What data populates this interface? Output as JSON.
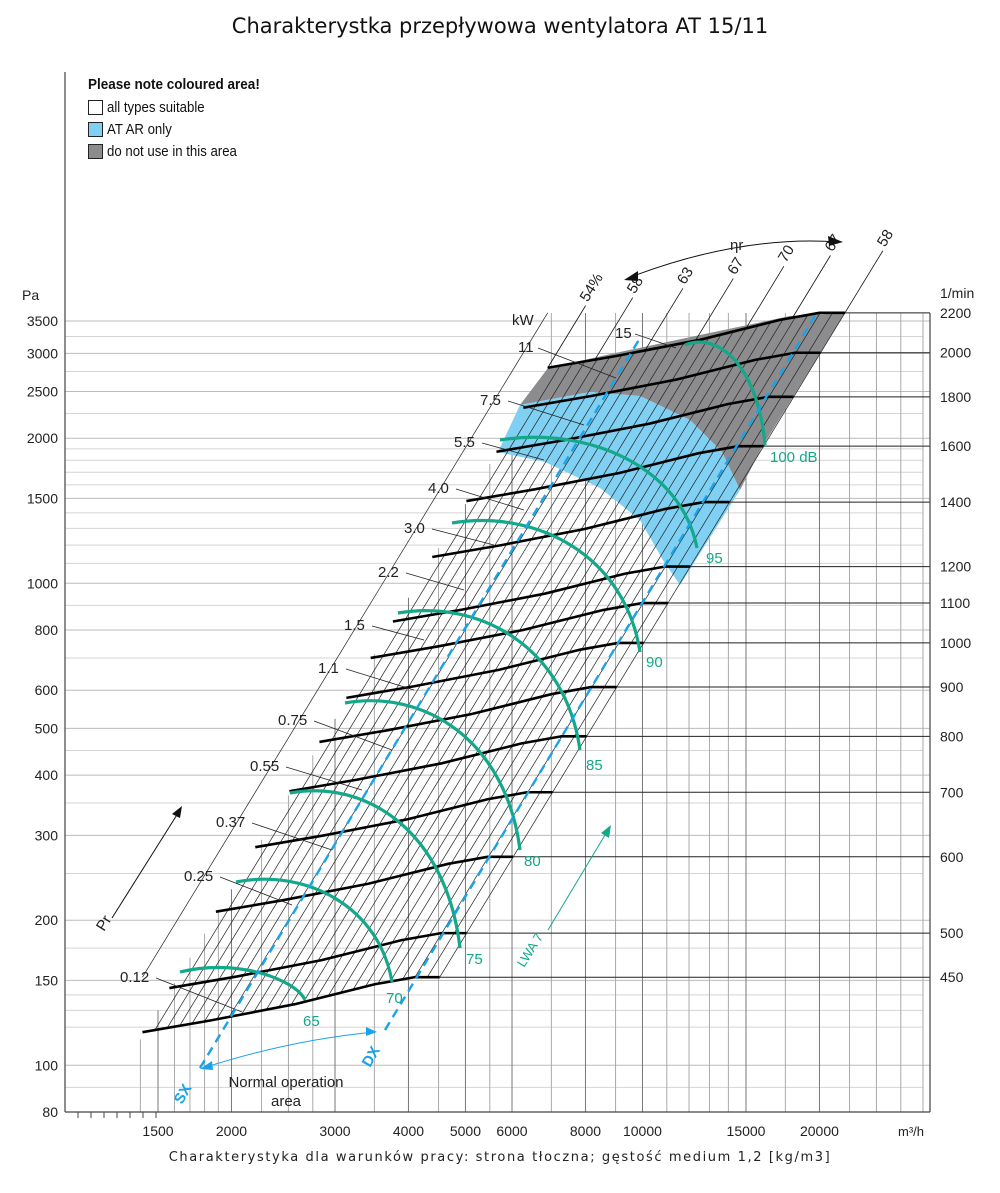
{
  "title": "Charakterystka przepływowa wentylatora AT 15/11",
  "footer": "Charakterystyka dla warunków pracy: strona tłoczna; gęstość medium 1,2 [kg/m3]",
  "legend": {
    "heading": "Please note coloured area!",
    "items": [
      {
        "label": "all types suitable",
        "color": "#ffffff"
      },
      {
        "label": "AT AR only",
        "color": "#7fd0f2"
      },
      {
        "label": "do not use in this area",
        "color": "#8c8c8f"
      }
    ]
  },
  "chart_data": {
    "type": "line",
    "title": "Charakterystka przepływowa wentylatora AT 15/11",
    "xlabel": "m³/h",
    "ylabel": "Pa",
    "y2label": "1/min",
    "xscale": "log",
    "yscale": "log",
    "xlim": [
      1100,
      40000
    ],
    "ylim": [
      80,
      3500
    ],
    "x_ticks": [
      1500,
      2000,
      3000,
      4000,
      5000,
      6000,
      8000,
      10000,
      15000,
      20000
    ],
    "y_ticks": [
      3500,
      3000,
      2500,
      2000,
      1500,
      1000,
      800,
      600,
      500,
      400,
      300,
      200,
      150,
      100,
      80
    ],
    "rpm_curves": {
      "label": "1/min",
      "values": [
        2200,
        2000,
        1800,
        1600,
        1400,
        1200,
        1100,
        1000,
        900,
        800,
        700,
        600,
        500,
        450
      ],
      "base_rpm": 2200,
      "base_curve": [
        [
          6900,
          2800
        ],
        [
          9000,
          2960
        ],
        [
          12530,
          3200
        ],
        [
          17140,
          3520
        ],
        [
          20000,
          3640
        ],
        [
          22100,
          3640
        ]
      ]
    },
    "power_kW": {
      "label": "kW",
      "values": [
        "15",
        "11",
        "7.5",
        "5.5",
        "4.0",
        "3.0",
        "2.2",
        "1.5",
        "1.1",
        "0.75",
        "0.55",
        "0.37",
        "0.25",
        "0.12"
      ]
    },
    "efficiency": {
      "label": "ηr",
      "lines": [
        {
          "label": "54%",
          "flow_at_base": 6900
        },
        {
          "label": "58",
          "flow_at_base": 8300
        },
        {
          "label": "63",
          "flow_at_base": 10100
        },
        {
          "label": "67",
          "flow_at_base": 12300
        },
        {
          "label": "70",
          "flow_at_base": 15000
        },
        {
          "label": "67",
          "flow_at_base": 18000
        },
        {
          "label": "58",
          "flow_at_base": 22100
        }
      ]
    },
    "noise_LWA7": {
      "label": "LWA 7",
      "values": [
        "100 dB",
        "95",
        "90",
        "85",
        "80",
        "75",
        "70",
        "65"
      ]
    },
    "annotations": {
      "sx": "SX",
      "dx": "DX",
      "normal_area": [
        "Normal operation",
        "area"
      ],
      "pressure_arrow": "Pr"
    },
    "colors": {
      "rpm": "#000000",
      "noise": "#13a88a",
      "limit": "#1aa3e8",
      "blue_area": "#7fd0f2",
      "gray_area": "#8c8c8f"
    }
  }
}
